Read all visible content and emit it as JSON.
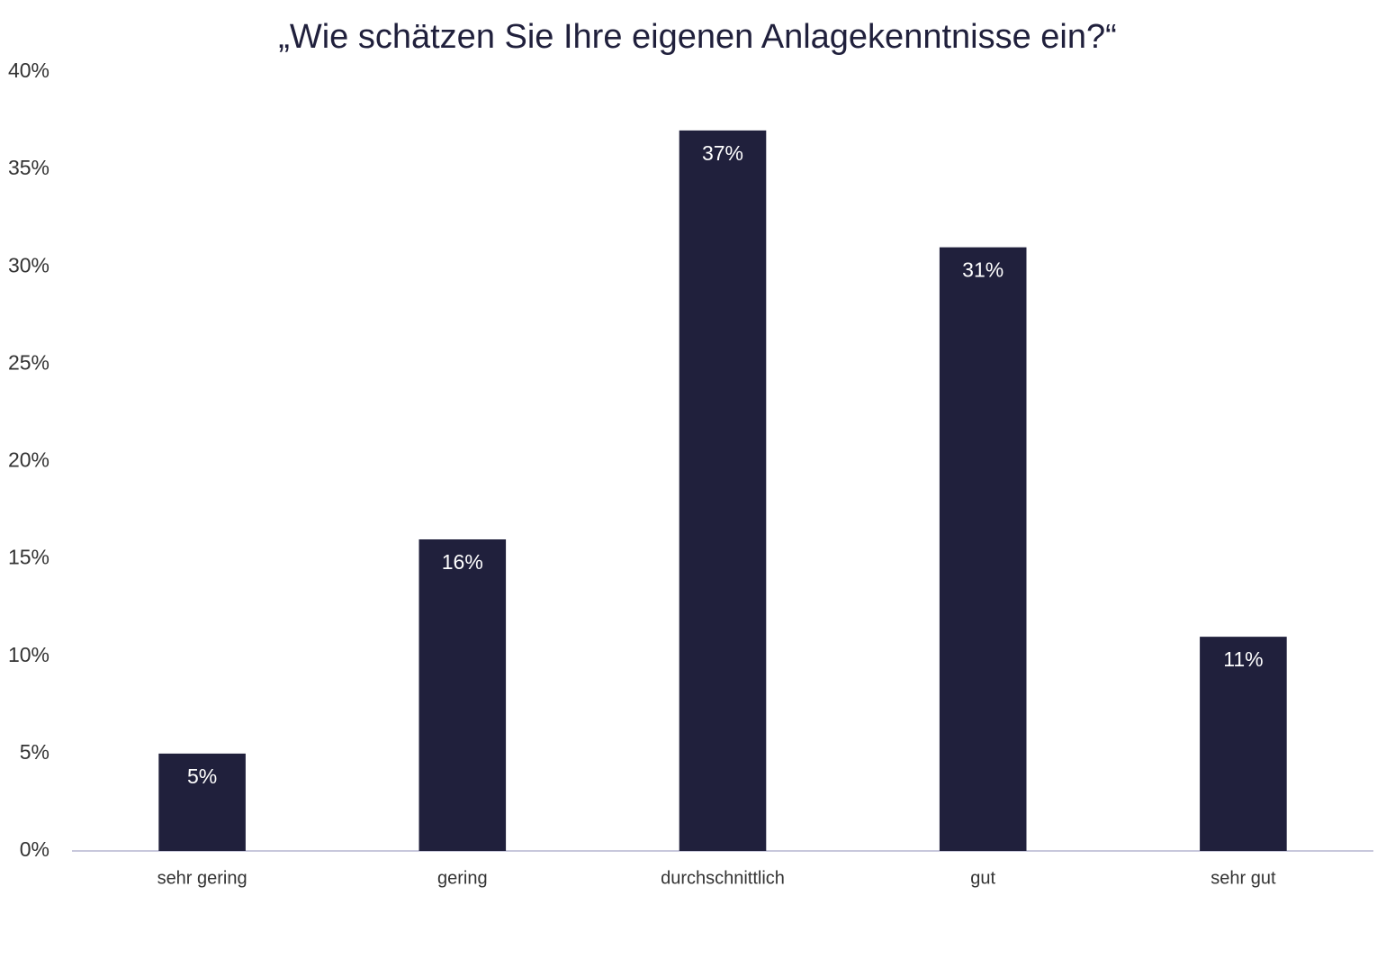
{
  "chart_data": {
    "type": "bar",
    "title": "„Wie schätzen Sie Ihre eigenen Anlagekenntnisse ein?“",
    "categories": [
      "sehr gering",
      "gering",
      "durchschnittlich",
      "gut",
      "sehr gut"
    ],
    "values": [
      5,
      16,
      37,
      31,
      11
    ],
    "value_labels": [
      "5%",
      "16%",
      "37%",
      "31%",
      "11%"
    ],
    "color": "#20203c",
    "ylim": [
      0,
      40
    ],
    "yticks": [
      {
        "value": 0,
        "label": "0%"
      },
      {
        "value": 5,
        "label": "5%"
      },
      {
        "value": 10,
        "label": "10%"
      },
      {
        "value": 15,
        "label": "15%"
      },
      {
        "value": 20,
        "label": "20%"
      },
      {
        "value": 25,
        "label": "25%"
      },
      {
        "value": 30,
        "label": "30%"
      },
      {
        "value": 35,
        "label": "35%"
      },
      {
        "value": 40,
        "label": "40%"
      }
    ],
    "grid": false
  }
}
